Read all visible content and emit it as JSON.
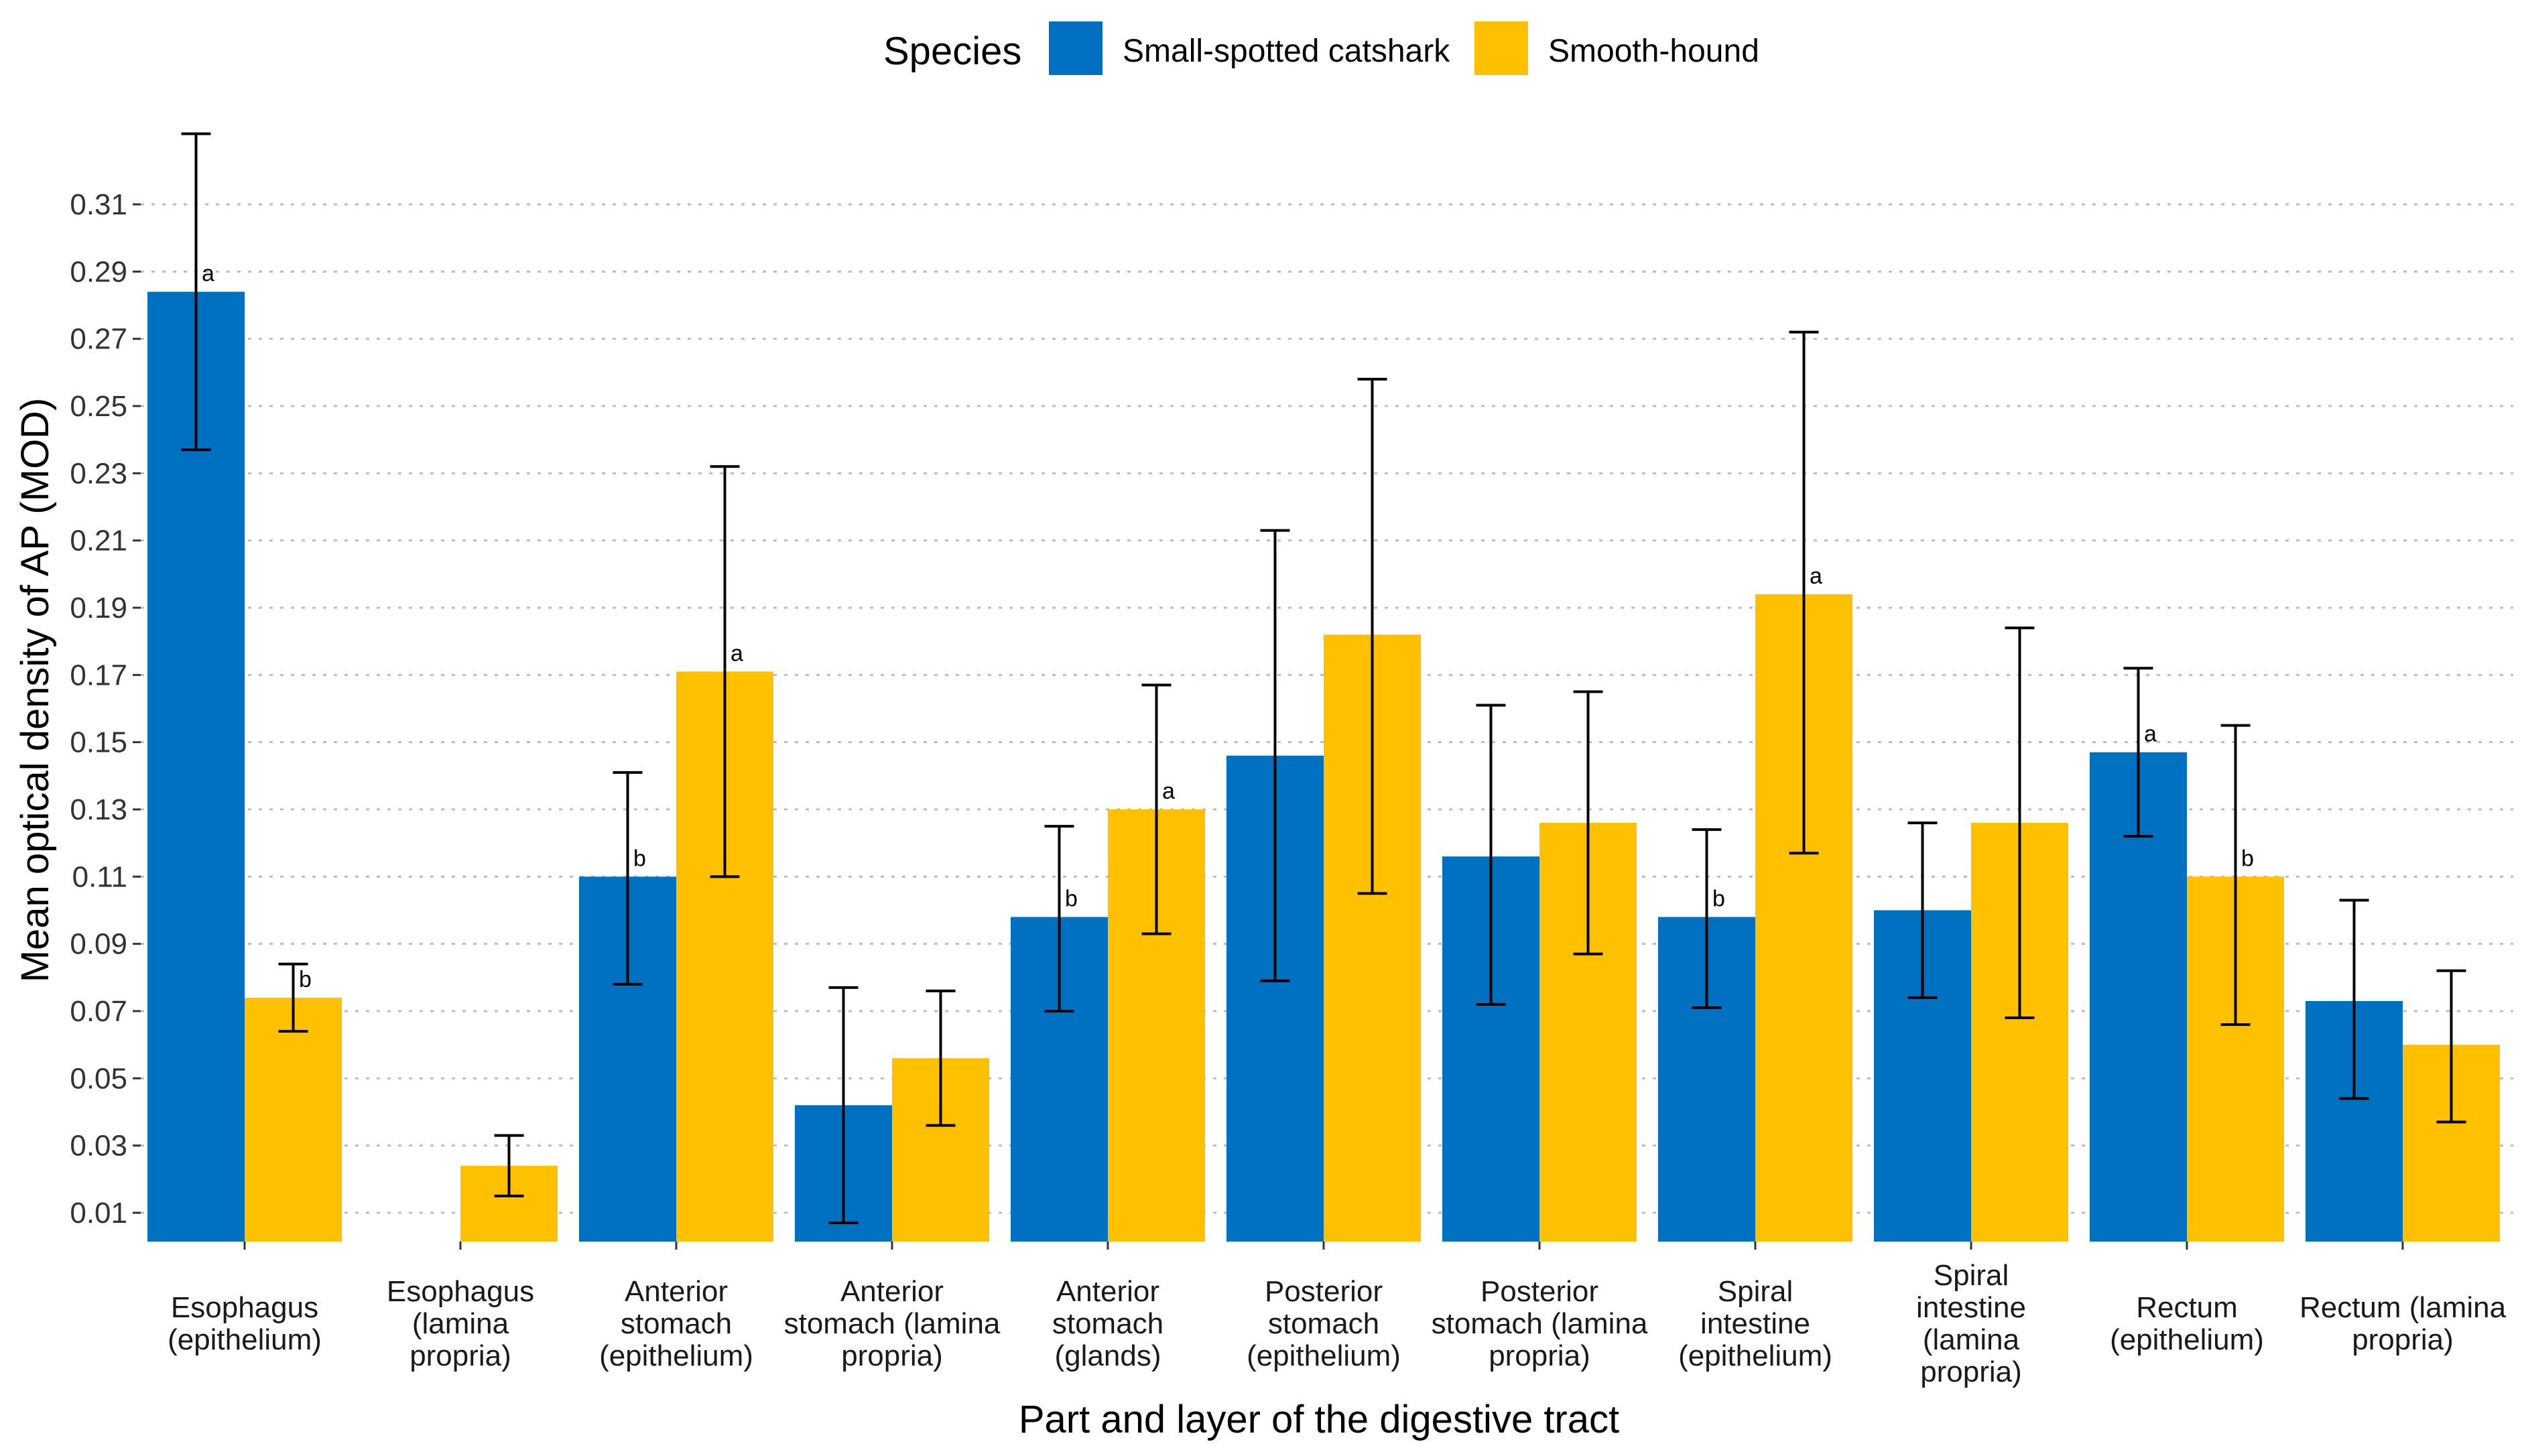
{
  "chart_data": {
    "type": "bar",
    "title": "",
    "xlabel": "Part and layer of the digestive tract",
    "ylabel": "Mean optical density of AP (MOD)",
    "ylim": [
      0,
      0.33
    ],
    "y_ticks": [
      0.01,
      0.03,
      0.05,
      0.07,
      0.09,
      0.11,
      0.13,
      0.15,
      0.17,
      0.19,
      0.21,
      0.23,
      0.25,
      0.27,
      0.29,
      0.31
    ],
    "grid": "horizontal dotted",
    "legend": {
      "title": "Species",
      "position": "top-center",
      "entries": [
        {
          "name": "Small-spotted catshark",
          "color": "#0070C0"
        },
        {
          "name": "Smooth-hound",
          "color": "#FFC000"
        }
      ]
    },
    "categories": [
      [
        "Esophagus",
        "(epithelium)"
      ],
      [
        "Esophagus",
        "(lamina",
        "propria)"
      ],
      [
        "Anterior",
        "stomach",
        "(epithelium)"
      ],
      [
        "Anterior",
        "stomach (lamina",
        "propria)"
      ],
      [
        "Anterior",
        "stomach",
        "(glands)"
      ],
      [
        "Posterior",
        "stomach",
        "(epithelium)"
      ],
      [
        "Posterior",
        "stomach (lamina",
        "propria)"
      ],
      [
        "Spiral",
        "intestine",
        "(epithelium)"
      ],
      [
        "Spiral",
        "intestine",
        "(lamina",
        "propria)"
      ],
      [
        "Rectum",
        "(epithelium)"
      ],
      [
        "Rectum (lamina",
        "propria)"
      ]
    ],
    "series": [
      {
        "name": "Small-spotted catshark",
        "color": "#0070C0",
        "values": [
          0.284,
          null,
          0.11,
          0.042,
          0.098,
          0.146,
          0.116,
          0.098,
          0.1,
          0.147,
          0.073
        ],
        "err_low": [
          0.237,
          null,
          0.078,
          0.007,
          0.07,
          0.079,
          0.072,
          0.071,
          0.074,
          0.122,
          0.044
        ],
        "err_high": [
          0.331,
          null,
          0.141,
          0.077,
          0.125,
          0.213,
          0.161,
          0.124,
          0.126,
          0.172,
          0.103
        ],
        "sig": [
          "a",
          null,
          "b",
          null,
          "b",
          null,
          null,
          "b",
          null,
          "a",
          null
        ]
      },
      {
        "name": "Smooth-hound",
        "color": "#FFC000",
        "values": [
          0.074,
          0.024,
          0.171,
          0.056,
          0.13,
          0.182,
          0.126,
          0.194,
          0.126,
          0.11,
          0.06
        ],
        "err_low": [
          0.064,
          0.015,
          0.11,
          0.036,
          0.093,
          0.105,
          0.087,
          0.117,
          0.068,
          0.066,
          0.037
        ],
        "err_high": [
          0.084,
          0.033,
          0.232,
          0.076,
          0.167,
          0.258,
          0.165,
          0.272,
          0.184,
          0.155,
          0.082
        ],
        "sig": [
          "b",
          null,
          "a",
          null,
          "a",
          null,
          null,
          "a",
          null,
          "b",
          null
        ]
      }
    ]
  }
}
